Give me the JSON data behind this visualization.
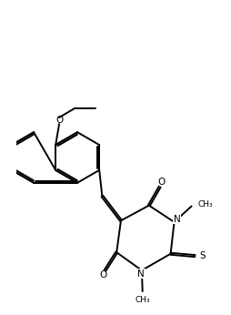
{
  "bg": "#ffffff",
  "lc": "#000000",
  "lw": 1.4,
  "fs": 7.5,
  "fss": 6.5,
  "xlim": [
    0.0,
    5.5
  ],
  "ylim": [
    0.5,
    9.2
  ],
  "figsize": [
    2.54,
    3.46
  ],
  "dpi": 100,
  "off": 0.052
}
